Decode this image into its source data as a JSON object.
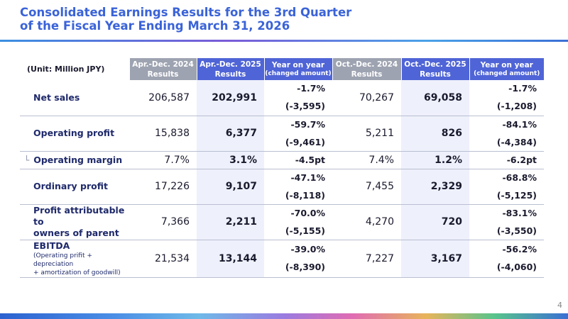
{
  "header": {
    "title_line1": "Consolidated Earnings Results for the 3rd Quarter",
    "title_line2": "of the Fiscal Year Ending March 31, 2026"
  },
  "table": {
    "unit_label": "(Unit: Million JPY)",
    "columns": [
      {
        "line1": "Apr.-Dec. 2024",
        "line2": "Results",
        "style": "gray"
      },
      {
        "line1": "Apr.-Dec. 2025",
        "line2": "Results",
        "style": "blue"
      },
      {
        "line1": "Year on year",
        "line2": "(changed amount)",
        "style": "blue"
      },
      {
        "line1": "Oct.-Dec. 2024",
        "line2": "Results",
        "style": "gray"
      },
      {
        "line1": "Oct.-Dec. 2025",
        "line2": "Results",
        "style": "blue"
      },
      {
        "line1": "Year on year",
        "line2": "(changed amount)",
        "style": "blue"
      }
    ],
    "rows": [
      {
        "label": "Net sales",
        "note": "",
        "prev9m": "206,587",
        "cur9m": "202,991",
        "yoy9m_pct": "-1.7%",
        "yoy9m_amt": "(-3,595)",
        "prevQ": "70,267",
        "curQ": "69,058",
        "yoyQ_pct": "-1.7%",
        "yoyQ_amt": "(-1,208)"
      },
      {
        "label": "Operating profit",
        "note": "",
        "prev9m": "15,838",
        "cur9m": "6,377",
        "yoy9m_pct": "-59.7%",
        "yoy9m_amt": "(-9,461)",
        "prevQ": "5,211",
        "curQ": "826",
        "yoyQ_pct": "-84.1%",
        "yoyQ_amt": "(-4,384)"
      },
      {
        "label": "Operating margin",
        "sub_mark": "└",
        "note": "",
        "prev9m": "7.7%",
        "cur9m": "3.1%",
        "yoy9m_pct": "-4.5pt",
        "yoy9m_amt": "",
        "prevQ": "7.4%",
        "curQ": "1.2%",
        "yoyQ_pct": "-6.2pt",
        "yoyQ_amt": ""
      },
      {
        "label": "Ordinary profit",
        "note": "",
        "prev9m": "17,226",
        "cur9m": "9,107",
        "yoy9m_pct": "-47.1%",
        "yoy9m_amt": "(-8,118)",
        "prevQ": "7,455",
        "curQ": "2,329",
        "yoyQ_pct": "-68.8%",
        "yoyQ_amt": "(-5,125)"
      },
      {
        "label_line1": "Profit attributable to",
        "label_line2": "owners of parent",
        "note": "",
        "prev9m": "7,366",
        "cur9m": "2,211",
        "yoy9m_pct": "-70.0%",
        "yoy9m_amt": "(-5,155)",
        "prevQ": "4,270",
        "curQ": "720",
        "yoyQ_pct": "-83.1%",
        "yoyQ_amt": "(-3,550)"
      },
      {
        "label": "EBITDA",
        "note_line1": "(Operating prifit + depreciation",
        "note_line2": "+ amortization of goodwill)",
        "prev9m": "21,534",
        "cur9m": "13,144",
        "yoy9m_pct": "-39.0%",
        "yoy9m_amt": "(-8,390)",
        "prevQ": "7,227",
        "curQ": "3,167",
        "yoyQ_pct": "-56.2%",
        "yoyQ_amt": "(-4,060)"
      }
    ]
  },
  "footer": {
    "page_number": "4"
  },
  "colors": {
    "title": "#3a63d8",
    "header_gray": "#9ea3b1",
    "header_blue": "#4f64d6",
    "current_period_fill": "#eef0fb",
    "label_text": "#1f2a6b"
  }
}
